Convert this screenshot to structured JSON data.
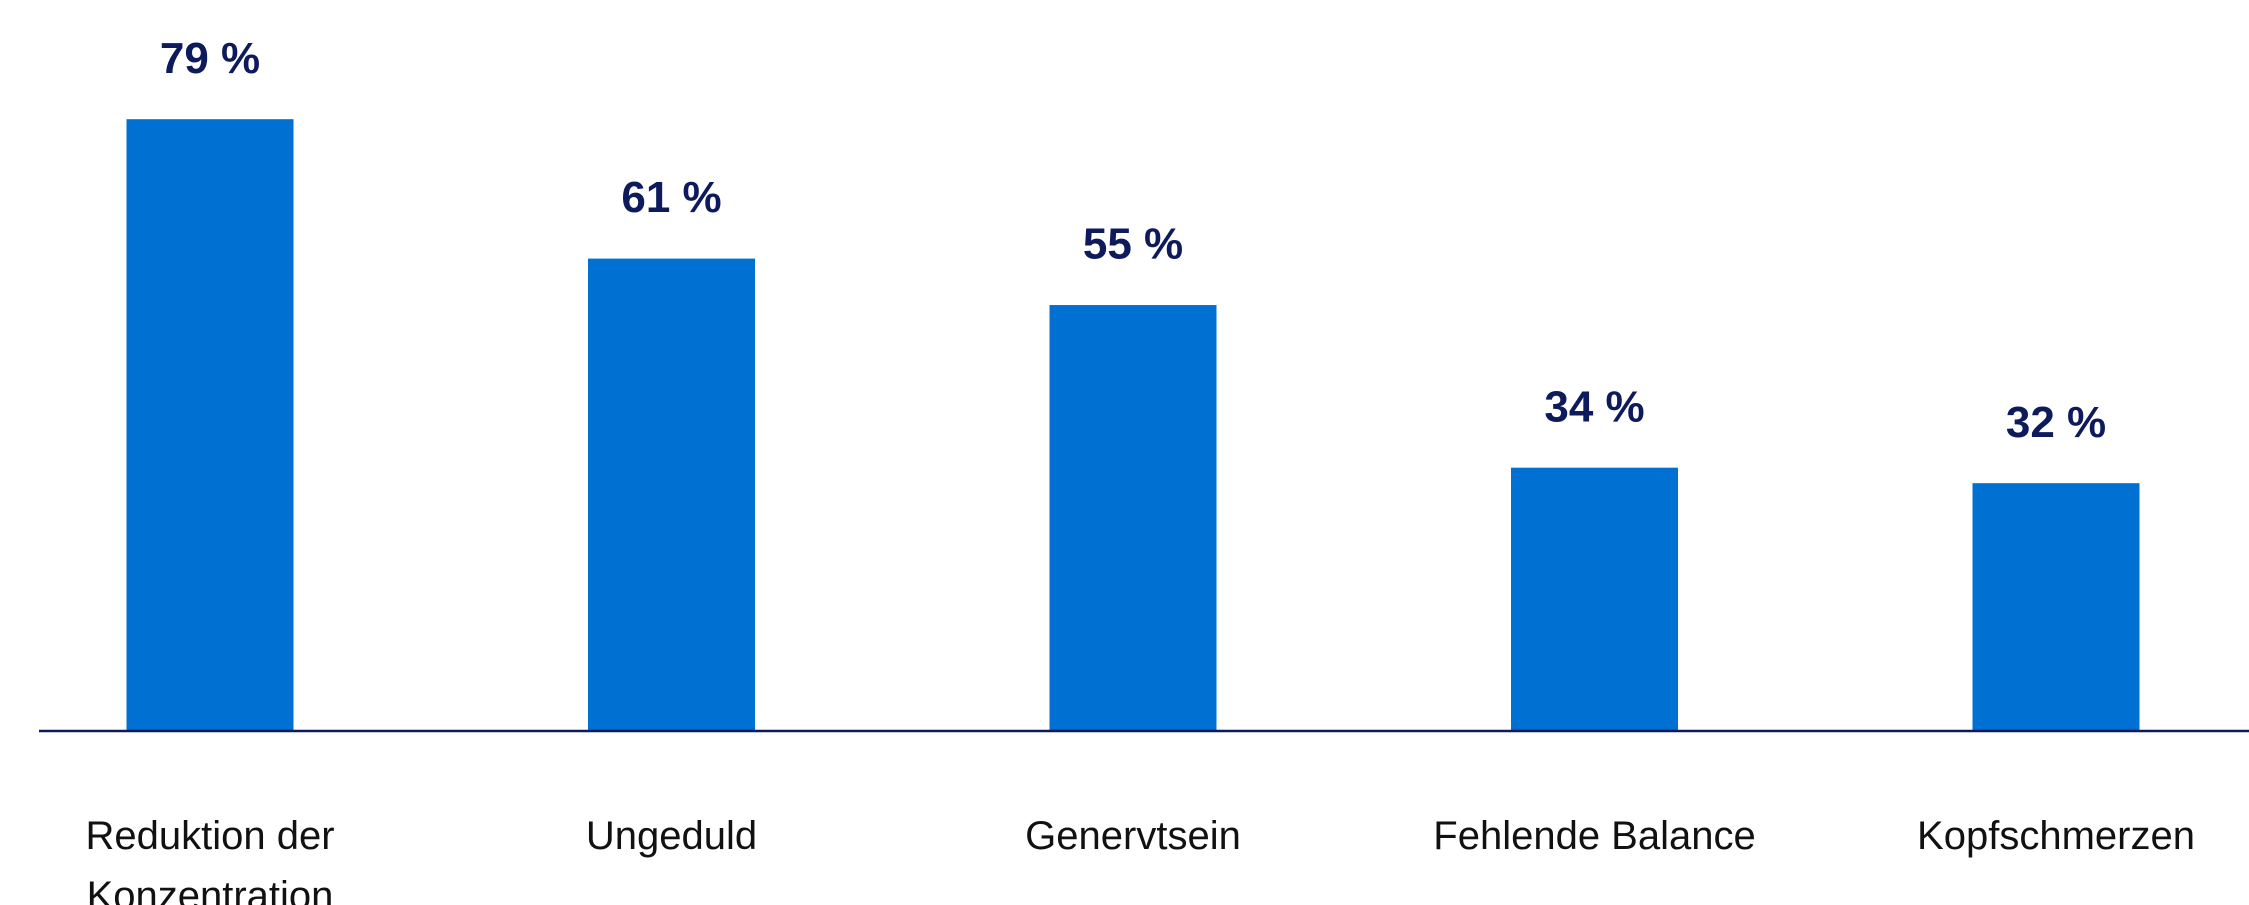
{
  "chart_data": {
    "type": "bar",
    "categories": [
      "Reduktion der Konzentration",
      "Ungeduld",
      "Genervtsein",
      "Fehlende Balance",
      "Kopfschmerzen"
    ],
    "values": [
      79,
      61,
      55,
      34,
      32
    ],
    "value_labels": [
      "79 %",
      "61 %",
      "55 %",
      "34 %",
      "32 %"
    ],
    "color": "#0070d2",
    "ylim": [
      0,
      90
    ]
  }
}
